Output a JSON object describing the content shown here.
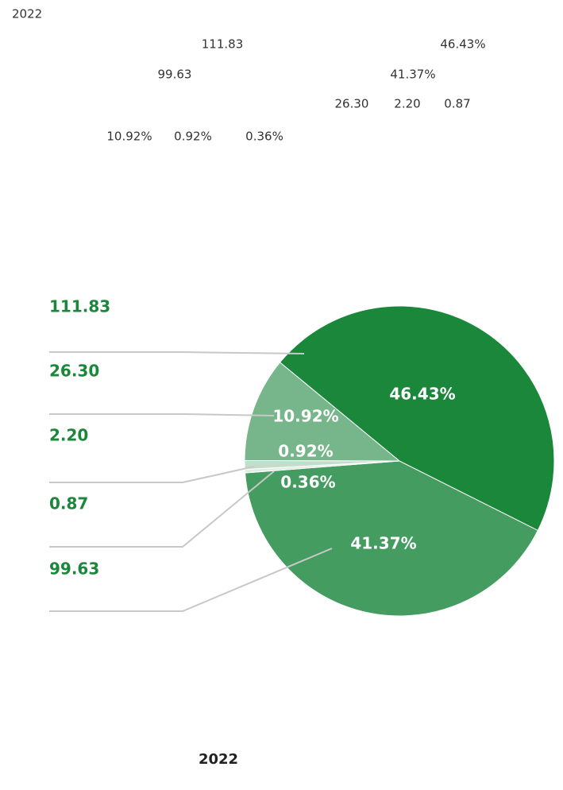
{
  "heading": "2022",
  "chart_data": {
    "type": "pie",
    "title": "2022",
    "values": [
      46.43,
      41.37,
      0.36,
      0.92,
      10.92
    ],
    "value_labels": [
      "46.43%",
      "41.37%",
      "0.36%",
      "0.92%",
      "10.92%"
    ],
    "amounts": [
      111.83,
      99.63,
      0.87,
      2.2,
      26.3
    ],
    "amount_labels": [
      "111.83",
      "99.63",
      "0.87",
      "2.20",
      "26.30"
    ],
    "colors": [
      "#1a873a",
      "#449c60",
      "#dfeee3",
      "#c2ddc9",
      "#77b68a"
    ]
  }
}
